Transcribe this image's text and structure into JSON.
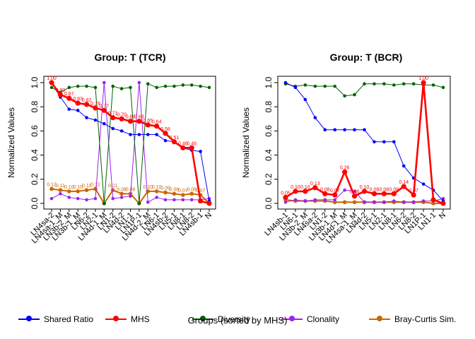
{
  "xlabel": "Groups (sorted by MHS)",
  "legend": [
    {
      "name": "Shared Ratio",
      "color": "#0000ff"
    },
    {
      "name": "MHS",
      "color": "#ff0000"
    },
    {
      "name": "Diversity",
      "color": "#006400"
    },
    {
      "name": "Clonality",
      "color": "#a020f0"
    },
    {
      "name": "Bray-Curtis Sim.",
      "color": "#cc6600"
    }
  ],
  "chart_data": [
    {
      "type": "line",
      "title": "Group: T (TCR)",
      "ylabel": "Normalized Values",
      "ylim": [
        0,
        1
      ],
      "yticks": [
        "0.0",
        "0.2",
        "0.4",
        "0.6",
        "0.8",
        "1.0"
      ],
      "grid": false,
      "categories": [
        "LN4sa-2",
        "LN4sa-1_M",
        "LN3b-2_M",
        "LN3b-1_M",
        "LN6-2",
        "LN2-1",
        "LN4d-1_M",
        "LN1-2",
        "LN4d-2",
        "LN1-1",
        "LN1P-1",
        "LN4d-2_M",
        "LN6-1",
        "LN4sb-2",
        "LN5-1",
        "LN8-1",
        "LN8-2",
        "LN4sb-1",
        "N"
      ],
      "xticks": [
        "LN4sa-2",
        "LN4sa-1_M",
        "LN3b-2_M",
        "LN3b-1_M",
        "LN6-2",
        "LN2-1",
        "LN4d-1_M",
        "LN1-2",
        "LN4d-2",
        "LN1-1",
        "LN1P-1",
        "LN4d-2_M",
        "LN6-1",
        "LN4sb-2",
        "LN5-1",
        "LN8-1",
        "LN8-2",
        "LN4sb-1",
        "N"
      ],
      "series": [
        {
          "name": "Shared Ratio",
          "color": "#0000ff",
          "values": [
            1.0,
            0.88,
            0.78,
            0.77,
            0.71,
            0.69,
            0.66,
            0.62,
            0.6,
            0.57,
            0.57,
            0.57,
            0.57,
            0.52,
            0.51,
            0.46,
            0.44,
            0.43,
            0.02
          ]
        },
        {
          "name": "MHS",
          "color": "#ff0000",
          "values": [
            1.0,
            0.9,
            0.87,
            0.83,
            0.82,
            0.79,
            0.77,
            0.71,
            0.7,
            0.68,
            0.68,
            0.65,
            0.64,
            0.58,
            0.51,
            0.46,
            0.46,
            0.02,
            0.0
          ],
          "labels": [
            "1.00",
            "0.90",
            "0.87",
            "0.83",
            "0.82",
            "0.79",
            "0.77",
            "0.71",
            "0.70",
            "0.68",
            "0.68",
            "0.65",
            "0.64",
            "0.58",
            "0.51",
            "0.46",
            "0.46",
            "",
            ""
          ]
        },
        {
          "name": "Diversity",
          "color": "#006400",
          "values": [
            0.96,
            0.92,
            0.96,
            0.97,
            0.97,
            0.96,
            0.0,
            0.97,
            0.95,
            0.96,
            0.0,
            0.99,
            0.96,
            0.97,
            0.97,
            0.98,
            0.98,
            0.97,
            0.96
          ]
        },
        {
          "name": "Clonality",
          "color": "#a020f0",
          "values": [
            0.04,
            0.08,
            0.05,
            0.04,
            0.03,
            0.04,
            1.0,
            0.04,
            0.05,
            0.06,
            1.0,
            0.01,
            0.05,
            0.03,
            0.03,
            0.03,
            0.03,
            0.03,
            0.04
          ]
        },
        {
          "name": "Bray-Curtis Sim.",
          "color": "#cc6600",
          "values": [
            0.12,
            0.11,
            0.1,
            0.1,
            0.11,
            0.12,
            0.0,
            0.11,
            0.08,
            0.08,
            0.0,
            0.1,
            0.1,
            0.09,
            0.08,
            0.07,
            0.08,
            0.07,
            0.0
          ],
          "labels": [
            "0.12",
            "0.11",
            "0.10",
            "0.10",
            "0.11",
            "0.12",
            "",
            "0.11",
            "0.08",
            "0.08",
            "",
            "0.10",
            "0.10",
            "0.09",
            "0.08",
            "0.07",
            "0.08",
            "0.07",
            ""
          ]
        }
      ]
    },
    {
      "type": "line",
      "title": "Group: T (BCR)",
      "ylabel": "Normalized Values",
      "ylim": [
        0,
        1
      ],
      "yticks": [
        "0.0",
        "0.2",
        "0.4",
        "0.6",
        "0.8",
        "1.0"
      ],
      "grid": false,
      "categories": [
        "LN4sb-1",
        "LN6-1",
        "LN3b-2_M",
        "LN4sa-2",
        "LN1-2",
        "LN3b-1_M",
        "LN4d-1_M",
        "LN4sa-1_M",
        "LN4d-2",
        "LN5-1",
        "LN2-1",
        "LN8-1",
        "LN6-2",
        "LN8-2",
        "LN1P-1",
        "LN1-1",
        "N"
      ],
      "xticks": [
        "LN4sb-1",
        "LN6-1",
        "LN3b-2_M",
        "LN4sa-2",
        "LN1-2",
        "LN3b-1_M",
        "LN4d-1_M",
        "LN4sa-1_M",
        "LN4d-2",
        "LN5-1",
        "LN2-1",
        "LN8-1",
        "LN6-2",
        "LN8-2",
        "LN1P-1",
        "LN1-1",
        "N"
      ],
      "series": [
        {
          "name": "Shared Ratio",
          "color": "#0000ff",
          "values": [
            1.0,
            0.96,
            0.86,
            0.71,
            0.61,
            0.61,
            0.61,
            0.61,
            0.61,
            0.51,
            0.51,
            0.51,
            0.31,
            0.21,
            0.16,
            0.11,
            0.02
          ]
        },
        {
          "name": "MHS",
          "color": "#ff0000",
          "values": [
            0.05,
            0.1,
            0.1,
            0.13,
            0.08,
            0.07,
            0.26,
            0.06,
            0.1,
            0.08,
            0.08,
            0.08,
            0.14,
            0.07,
            1.0,
            0.03,
            0.0
          ],
          "labels": [
            "0.05",
            "0.10",
            "0.10",
            "0.13",
            "0.08",
            "0.07",
            "0.26",
            "0.06",
            "0.10",
            "0.08",
            "0.08",
            "0.08",
            "0.14",
            "0.07",
            "1.00",
            "",
            ""
          ]
        },
        {
          "name": "Diversity",
          "color": "#006400",
          "values": [
            0.99,
            0.97,
            0.98,
            0.97,
            0.97,
            0.97,
            0.89,
            0.9,
            0.99,
            0.99,
            0.99,
            0.98,
            0.99,
            0.99,
            0.98,
            0.98,
            0.96
          ]
        },
        {
          "name": "Clonality",
          "color": "#a020f0",
          "values": [
            0.01,
            0.03,
            0.02,
            0.03,
            0.03,
            0.03,
            0.11,
            0.1,
            0.01,
            0.01,
            0.01,
            0.02,
            0.01,
            0.01,
            0.02,
            0.02,
            0.04
          ]
        },
        {
          "name": "Bray-Curtis Sim.",
          "color": "#cc6600",
          "values": [
            0.03,
            0.02,
            0.02,
            0.02,
            0.02,
            0.01,
            0.01,
            0.01,
            0.01,
            0.01,
            0.01,
            0.01,
            0.01,
            0.01,
            0.01,
            0.0,
            0.0
          ]
        }
      ]
    }
  ]
}
